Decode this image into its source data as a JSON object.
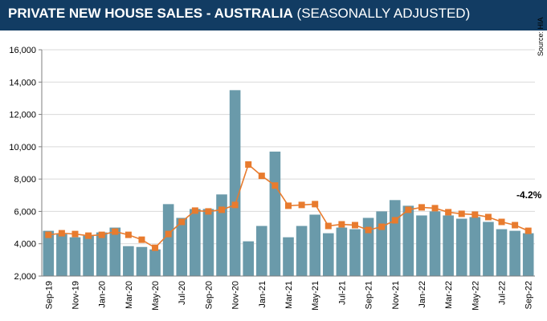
{
  "header": {
    "title_main": "PRIVATE NEW HOUSE SALES -  AUSTRALIA",
    "title_sub": " (SEASONALLY ADJUSTED)"
  },
  "source": "Source: HIA",
  "colors": {
    "header_bg": "#123c63",
    "bar": "#6a9aaa",
    "line": "#e87b2e"
  },
  "chart_data": {
    "type": "bar",
    "title": "PRIVATE NEW HOUSE SALES -  AUSTRALIA (SEASONALLY ADJUSTED)",
    "ylim": [
      2000,
      16000
    ],
    "yticks": [
      "2,000",
      "4,000",
      "6,000",
      "8,000",
      "10,000",
      "12,000",
      "14,000",
      "16,000"
    ],
    "grid": true,
    "categories": [
      "Sep-19",
      "Oct-19",
      "Nov-19",
      "Dec-19",
      "Jan-20",
      "Feb-20",
      "Mar-20",
      "Apr-20",
      "May-20",
      "Jun-20",
      "Jul-20",
      "Aug-20",
      "Sep-20",
      "Oct-20",
      "Nov-20",
      "Dec-20",
      "Jan-21",
      "Feb-21",
      "Mar-21",
      "Apr-21",
      "May-21",
      "Jun-21",
      "Jul-21",
      "Aug-21",
      "Sep-21",
      "Oct-21",
      "Nov-21",
      "Dec-21",
      "Jan-22",
      "Feb-22",
      "Mar-22",
      "Apr-22",
      "May-22",
      "Jun-22",
      "Jul-22",
      "Aug-22",
      "Sep-22"
    ],
    "xtick_labels": [
      "Sep-19",
      "Nov-19",
      "Jan-20",
      "Mar-20",
      "May-20",
      "Jul-20",
      "Sep-20",
      "Nov-20",
      "Jan-21",
      "Mar-21",
      "May-21",
      "Jul-21",
      "Sep-21",
      "Nov-21",
      "Jan-22",
      "Mar-22",
      "May-22",
      "Jul-22",
      "Sep-22"
    ],
    "series": [
      {
        "type": "bar",
        "values": [
          4800,
          4600,
          4400,
          4500,
          4700,
          5000,
          3850,
          3800,
          3650,
          6450,
          5600,
          6150,
          6150,
          7050,
          13500,
          4150,
          5100,
          9700,
          4400,
          5100,
          5800,
          4650,
          5000,
          4900,
          5600,
          6000,
          6700,
          6350,
          5750,
          6000,
          5750,
          5550,
          5650,
          5350,
          4900,
          4800,
          4650
        ]
      },
      {
        "type": "line",
        "values": [
          4550,
          4650,
          4600,
          4500,
          4550,
          4750,
          4550,
          4250,
          3750,
          4600,
          5350,
          6050,
          6000,
          6100,
          6400,
          8900,
          8200,
          7600,
          6350,
          6400,
          6450,
          5100,
          5200,
          5150,
          4850,
          5050,
          5450,
          6100,
          6250,
          6200,
          5950,
          5850,
          5800,
          5650,
          5350,
          5150,
          4800
        ]
      }
    ],
    "annotation": "-4.2%"
  }
}
